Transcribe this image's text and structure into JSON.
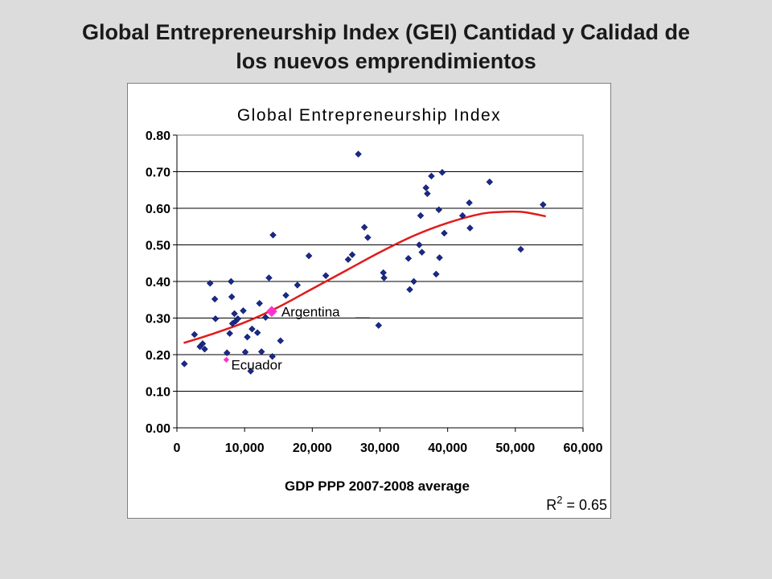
{
  "slide": {
    "title_line1": "Global Entrepreneurship Index (GEI) Cantidad y Calidad de",
    "title_line2": "los nuevos emprendimientos"
  },
  "chart_data": {
    "type": "scatter",
    "title": "Global Entrepreneurship Index",
    "xlabel": "GDP PPP 2007-2008 average",
    "ylabel": "",
    "xlim": [
      0,
      60000
    ],
    "ylim": [
      0,
      0.8
    ],
    "x_ticks": [
      "0",
      "10,000",
      "20,000",
      "30,000",
      "40,000",
      "50,000",
      "60,000"
    ],
    "y_ticks": [
      "0.00",
      "0.10",
      "0.20",
      "0.30",
      "0.40",
      "0.50",
      "0.60",
      "0.70",
      "0.80"
    ],
    "grid": "horizontal",
    "series_color": "#1a2a8a",
    "highlight_color": "#ff33cc",
    "trend_color": "#e01b1b",
    "points": [
      [
        1100,
        0.175
      ],
      [
        2600,
        0.255
      ],
      [
        3400,
        0.222
      ],
      [
        3800,
        0.23
      ],
      [
        4100,
        0.215
      ],
      [
        4900,
        0.395
      ],
      [
        5600,
        0.352
      ],
      [
        5700,
        0.298
      ],
      [
        7400,
        0.205
      ],
      [
        7800,
        0.258
      ],
      [
        8000,
        0.4
      ],
      [
        8100,
        0.358
      ],
      [
        8200,
        0.285
      ],
      [
        8500,
        0.312
      ],
      [
        8700,
        0.292
      ],
      [
        9000,
        0.298
      ],
      [
        9800,
        0.32
      ],
      [
        10100,
        0.207
      ],
      [
        10400,
        0.248
      ],
      [
        10900,
        0.155
      ],
      [
        11100,
        0.27
      ],
      [
        11900,
        0.26
      ],
      [
        12200,
        0.34
      ],
      [
        12500,
        0.208
      ],
      [
        13100,
        0.302
      ],
      [
        13600,
        0.41
      ],
      [
        14100,
        0.195
      ],
      [
        14200,
        0.527
      ],
      [
        15300,
        0.238
      ],
      [
        16100,
        0.362
      ],
      [
        17800,
        0.39
      ],
      [
        19500,
        0.47
      ],
      [
        22000,
        0.416
      ],
      [
        25300,
        0.46
      ],
      [
        25900,
        0.473
      ],
      [
        26800,
        0.748
      ],
      [
        27700,
        0.548
      ],
      [
        28200,
        0.52
      ],
      [
        29800,
        0.28
      ],
      [
        30500,
        0.424
      ],
      [
        30600,
        0.41
      ],
      [
        34200,
        0.463
      ],
      [
        34400,
        0.378
      ],
      [
        35000,
        0.4
      ],
      [
        35800,
        0.5
      ],
      [
        36000,
        0.58
      ],
      [
        36200,
        0.48
      ],
      [
        36800,
        0.656
      ],
      [
        37000,
        0.64
      ],
      [
        37600,
        0.688
      ],
      [
        38300,
        0.42
      ],
      [
        38700,
        0.596
      ],
      [
        38800,
        0.465
      ],
      [
        39200,
        0.698
      ],
      [
        39500,
        0.532
      ],
      [
        42200,
        0.58
      ],
      [
        43200,
        0.615
      ],
      [
        43300,
        0.546
      ],
      [
        46200,
        0.672
      ],
      [
        50800,
        0.488
      ],
      [
        54100,
        0.61
      ]
    ],
    "highlighted_points": [
      {
        "label": "Argentina",
        "x": 14000,
        "y": 0.318
      },
      {
        "label": "Ecuador",
        "x": 7300,
        "y": 0.186
      }
    ],
    "trendline": {
      "type": "polynomial",
      "points": [
        [
          1000,
          0.232
        ],
        [
          5000,
          0.255
        ],
        [
          10000,
          0.288
        ],
        [
          15000,
          0.33
        ],
        [
          20000,
          0.38
        ],
        [
          25000,
          0.43
        ],
        [
          30000,
          0.48
        ],
        [
          35000,
          0.525
        ],
        [
          40000,
          0.56
        ],
        [
          45000,
          0.585
        ],
        [
          48000,
          0.59
        ],
        [
          51000,
          0.59
        ],
        [
          54500,
          0.578
        ]
      ]
    },
    "r_squared_label": "R",
    "r_squared_sup": "2",
    "r_squared_value": " = 0.65"
  }
}
